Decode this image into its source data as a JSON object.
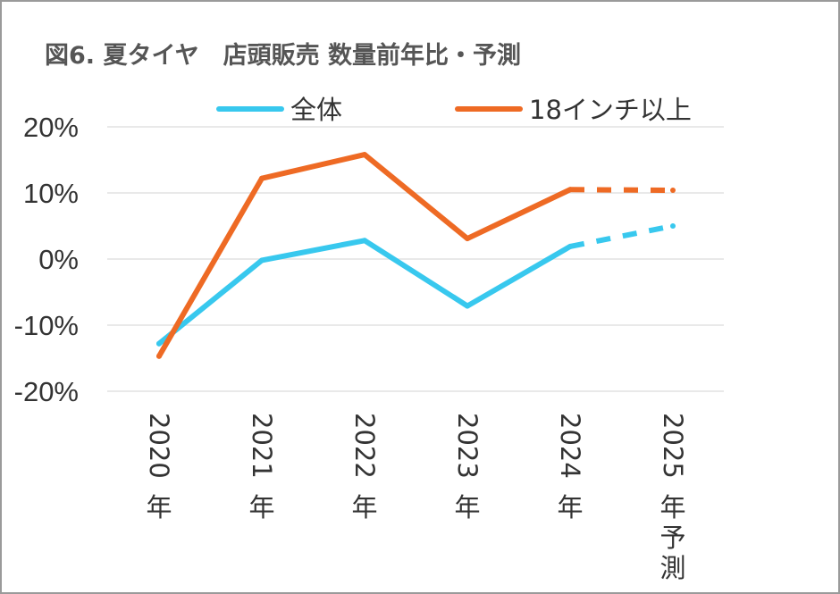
{
  "chart_data": {
    "type": "line",
    "title": "図6. 夏タイヤ　店頭販売 数量前年比・予測",
    "xlabel": "",
    "ylabel": "",
    "categories": [
      "2020年",
      "2021年",
      "2022年",
      "2023年",
      "2024年",
      "2025年予測"
    ],
    "y_ticks": [
      "20%",
      "10%",
      "0%",
      "-10%",
      "-20%"
    ],
    "ylim": [
      -20,
      20
    ],
    "grid": true,
    "legend_position": "top",
    "forecast_from_index": 4,
    "series": [
      {
        "name": "全体",
        "color": "#38C8EE",
        "values": [
          -12.8,
          -0.2,
          2.8,
          -7.1,
          1.9,
          5.0
        ]
      },
      {
        "name": "18インチ以上",
        "color": "#EE6A24",
        "values": [
          -14.7,
          12.2,
          15.8,
          3.1,
          10.5,
          10.4
        ]
      }
    ]
  }
}
